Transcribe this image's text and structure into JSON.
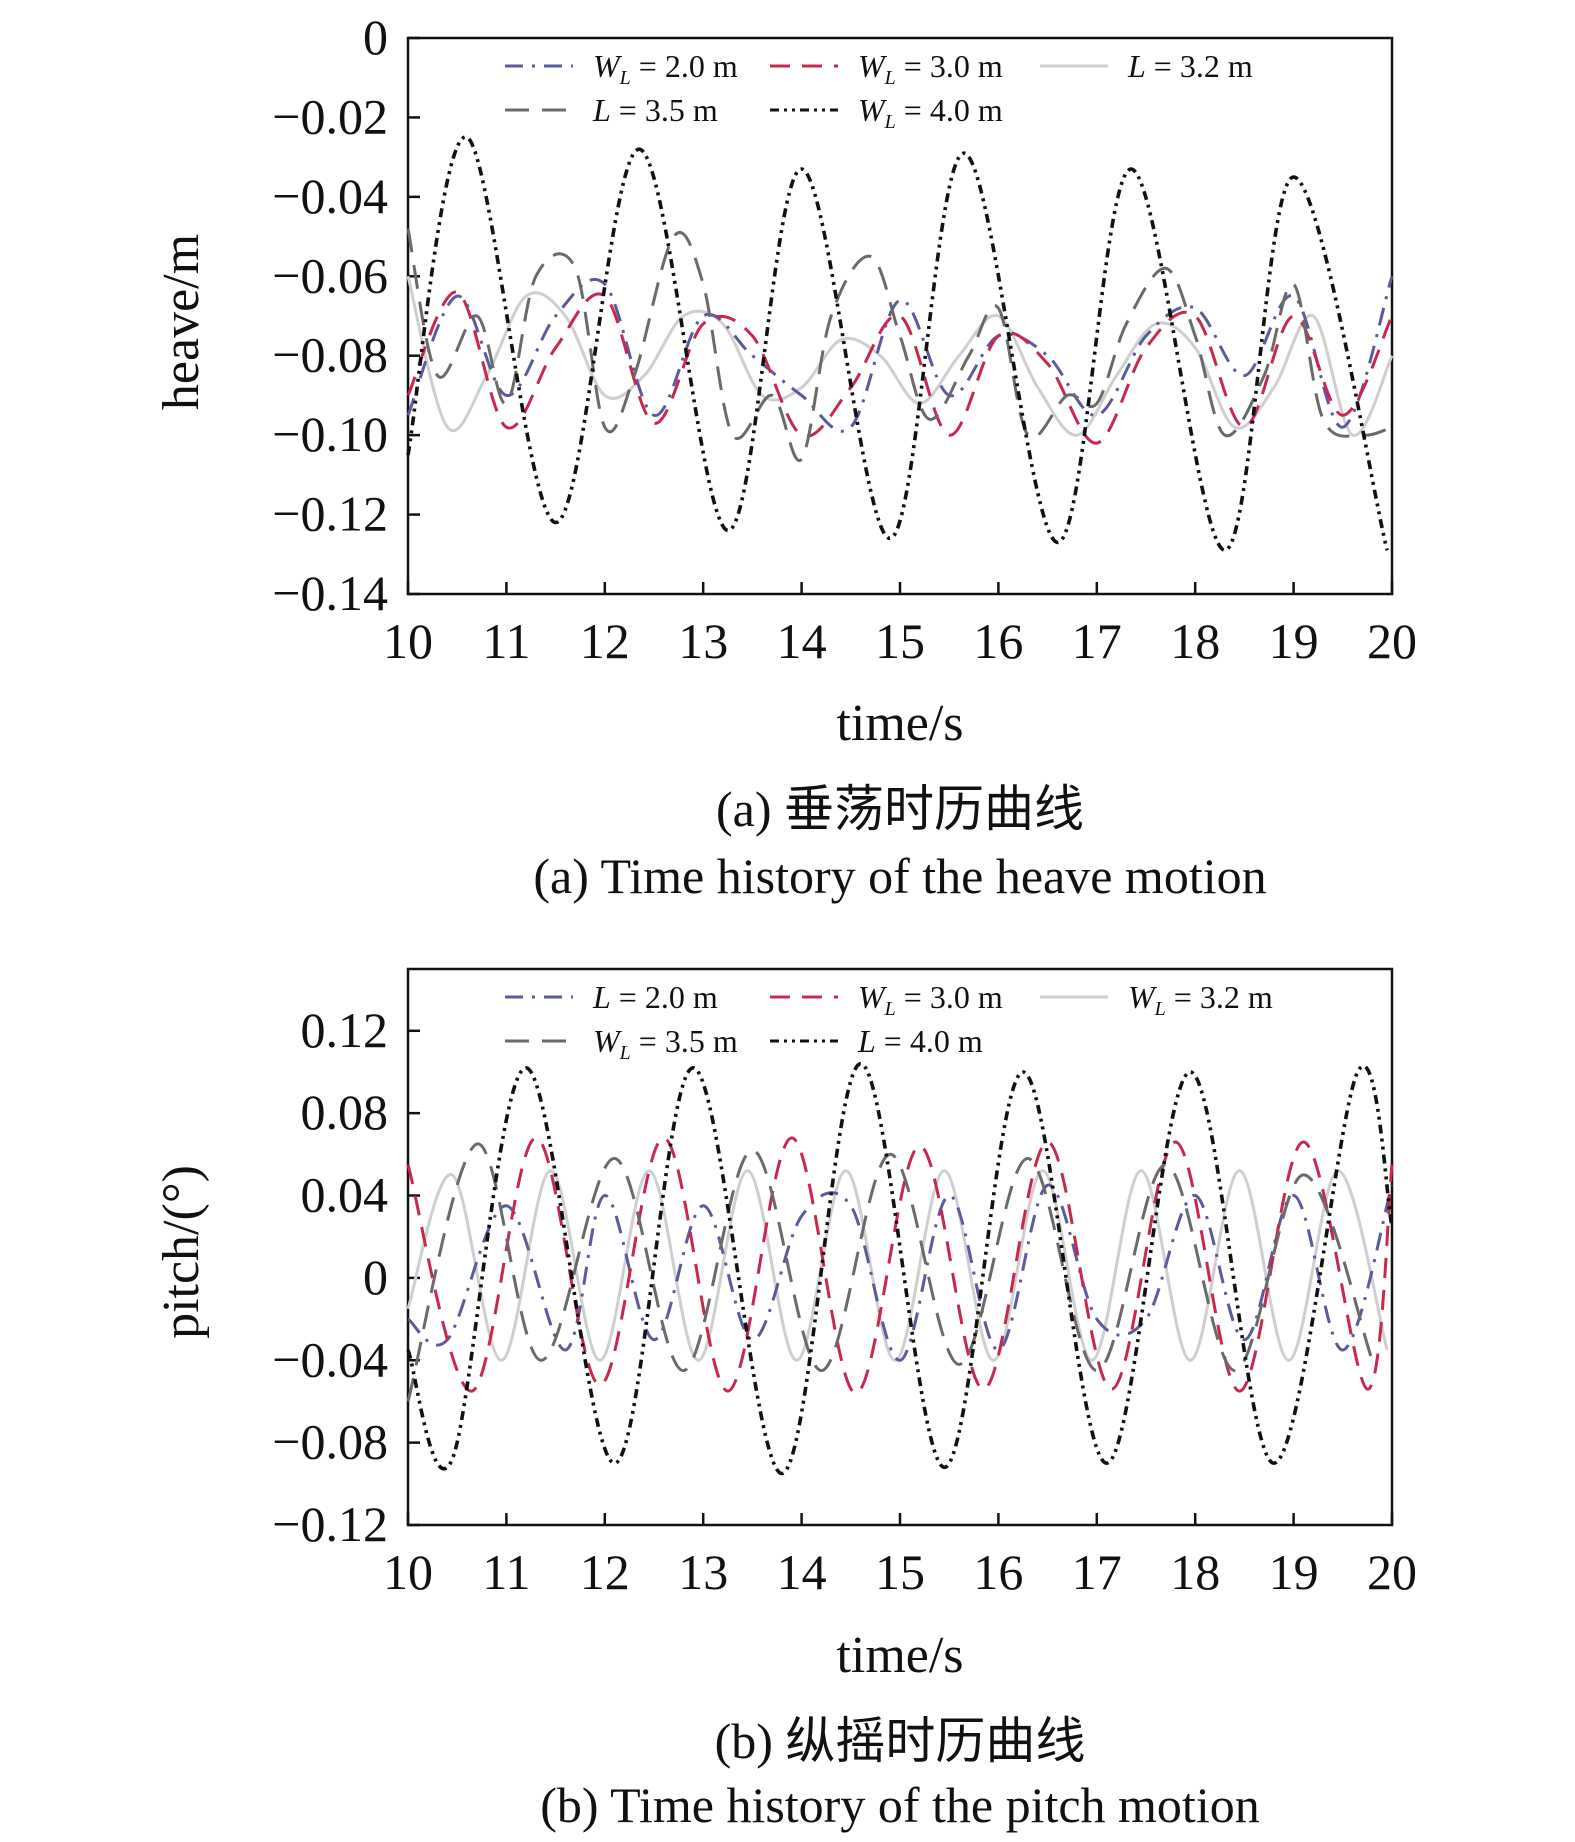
{
  "chart_data": [
    {
      "type": "line",
      "panel": "a",
      "caption_cn": "(a) 垂荡时历曲线",
      "caption_en": "(a) Time history of the heave motion",
      "xlabel": "time/s",
      "ylabel": "heave/m",
      "xlim": [
        10,
        20
      ],
      "ylim": [
        -0.14,
        0
      ],
      "xticks": [
        "10",
        "11",
        "12",
        "13",
        "14",
        "15",
        "16",
        "17",
        "18",
        "19",
        "20"
      ],
      "yticks": [
        "0",
        "−0.02",
        "−0.04",
        "−0.06",
        "−0.08",
        "−0.10",
        "−0.12",
        "−0.14"
      ],
      "grid": false,
      "legend_position": "top",
      "series": [
        {
          "name": "W_L = 2.0 m",
          "label_main": "W",
          "label_sub": "L",
          "label_rest": " = 2.0 m",
          "color": "#5a5a9e",
          "dash": "18 9 3 9",
          "x": [
            10.0,
            10.5,
            11.0,
            11.5,
            12.0,
            12.5,
            13.0,
            13.5,
            14.0,
            14.5,
            15.0,
            15.5,
            16.0,
            16.5,
            17.0,
            17.5,
            18.0,
            18.5,
            19.0,
            19.5,
            20.0
          ],
          "y": [
            -0.095,
            -0.065,
            -0.09,
            -0.07,
            -0.062,
            -0.095,
            -0.07,
            -0.08,
            -0.09,
            -0.098,
            -0.066,
            -0.09,
            -0.075,
            -0.08,
            -0.095,
            -0.075,
            -0.068,
            -0.085,
            -0.065,
            -0.098,
            -0.06
          ]
        },
        {
          "name": "W_L = 3.0 m",
          "label_main": "W",
          "label_sub": "L",
          "label_rest": " = 3.0 m",
          "color": "#c8284e",
          "dash": "20 12",
          "x": [
            10.0,
            10.5,
            11.0,
            11.5,
            12.0,
            12.5,
            13.0,
            13.5,
            14.0,
            14.5,
            15.0,
            15.5,
            16.0,
            16.5,
            17.0,
            17.5,
            18.0,
            18.5,
            19.0,
            19.5,
            20.0
          ],
          "y": [
            -0.09,
            -0.064,
            -0.098,
            -0.078,
            -0.065,
            -0.097,
            -0.072,
            -0.075,
            -0.1,
            -0.088,
            -0.07,
            -0.1,
            -0.075,
            -0.082,
            -0.102,
            -0.078,
            -0.07,
            -0.098,
            -0.07,
            -0.095,
            -0.07
          ]
        },
        {
          "name": "L = 3.2 m",
          "label_main": "L",
          "label_sub": "",
          "label_rest": " = 3.2 m",
          "color": "#cfcfcf",
          "dash": "",
          "x": [
            10.0,
            10.4,
            10.8,
            11.2,
            11.6,
            12.0,
            12.4,
            12.8,
            13.2,
            13.6,
            14.0,
            14.4,
            14.8,
            15.2,
            15.6,
            16.0,
            16.4,
            16.8,
            17.2,
            17.6,
            18.0,
            18.4,
            18.8,
            19.2,
            19.6,
            20.0
          ],
          "y": [
            -0.06,
            -0.098,
            -0.085,
            -0.065,
            -0.07,
            -0.09,
            -0.085,
            -0.07,
            -0.072,
            -0.09,
            -0.088,
            -0.076,
            -0.08,
            -0.092,
            -0.08,
            -0.07,
            -0.088,
            -0.1,
            -0.085,
            -0.072,
            -0.078,
            -0.098,
            -0.088,
            -0.07,
            -0.1,
            -0.08
          ]
        },
        {
          "name": "L = 3.5 m",
          "label_main": "L",
          "label_sub": "",
          "label_rest": " = 3.5 m",
          "color": "#6a6a6a",
          "dash": "24 13",
          "x": [
            10.0,
            10.3,
            10.7,
            11.0,
            11.3,
            11.7,
            12.0,
            12.3,
            12.7,
            13.0,
            13.3,
            13.7,
            14.0,
            14.3,
            14.7,
            15.0,
            15.3,
            15.7,
            16.0,
            16.3,
            16.7,
            17.0,
            17.3,
            17.7,
            18.0,
            18.3,
            18.7,
            19.0,
            19.3,
            19.7,
            20.0
          ],
          "y": [
            -0.048,
            -0.085,
            -0.07,
            -0.092,
            -0.06,
            -0.058,
            -0.098,
            -0.085,
            -0.05,
            -0.062,
            -0.1,
            -0.09,
            -0.106,
            -0.07,
            -0.055,
            -0.075,
            -0.096,
            -0.08,
            -0.068,
            -0.1,
            -0.09,
            -0.092,
            -0.072,
            -0.058,
            -0.075,
            -0.1,
            -0.085,
            -0.062,
            -0.096,
            -0.1,
            -0.098
          ]
        },
        {
          "name": "W_L = 4.0 m",
          "label_main": "W",
          "label_sub": "L",
          "label_rest": " = 4.0 m",
          "color": "#111111",
          "dash": "9 5 3 5 3 5",
          "x": [
            10.0,
            10.6,
            11.5,
            12.35,
            13.25,
            14.0,
            14.9,
            15.65,
            16.6,
            17.35,
            18.3,
            19.0,
            19.95
          ],
          "y": [
            -0.105,
            -0.025,
            -0.122,
            -0.028,
            -0.124,
            -0.033,
            -0.126,
            -0.029,
            -0.127,
            -0.033,
            -0.129,
            -0.035,
            -0.129
          ]
        }
      ]
    },
    {
      "type": "line",
      "panel": "b",
      "caption_cn": "(b) 纵摇时历曲线",
      "caption_en": "(b) Time history of the pitch motion",
      "xlabel": "time/s",
      "ylabel": "pitch/(°)",
      "xlim": [
        10,
        20
      ],
      "ylim": [
        -0.12,
        0.15
      ],
      "xticks": [
        "10",
        "11",
        "12",
        "13",
        "14",
        "15",
        "16",
        "17",
        "18",
        "19",
        "20"
      ],
      "yticks": [
        "0.12",
        "0.08",
        "0.04",
        "0",
        "−0.04",
        "−0.08",
        "−0.12"
      ],
      "ytick_values": [
        0.12,
        0.08,
        0.04,
        0,
        -0.04,
        -0.08,
        -0.12
      ],
      "grid": false,
      "legend_position": "top",
      "series": [
        {
          "name": "L = 2.0 m",
          "label_main": "L",
          "label_sub": "",
          "label_rest": " = 2.0 m",
          "color": "#5a5a9e",
          "dash": "18 9 3 9",
          "x": [
            10.0,
            10.4,
            11.0,
            11.6,
            12.0,
            12.5,
            13.0,
            13.5,
            14.0,
            14.5,
            15.0,
            15.5,
            16.0,
            16.5,
            17.0,
            17.5,
            18.0,
            18.5,
            19.0,
            19.5,
            20.0
          ],
          "y": [
            -0.02,
            -0.03,
            0.035,
            -0.035,
            0.04,
            -0.03,
            0.035,
            -0.03,
            0.03,
            0.035,
            -0.04,
            0.04,
            -0.035,
            0.045,
            -0.02,
            -0.02,
            0.04,
            -0.03,
            0.04,
            -0.035,
            0.045
          ]
        },
        {
          "name": "W_L = 3.0 m",
          "label_main": "W",
          "label_sub": "L",
          "label_rest": " = 3.0 m",
          "color": "#c8284e",
          "dash": "20 12",
          "x": [
            10.0,
            10.65,
            11.3,
            11.95,
            12.6,
            13.25,
            13.9,
            14.55,
            15.2,
            15.85,
            16.5,
            17.15,
            17.8,
            18.45,
            19.1,
            19.75,
            20.0
          ],
          "y": [
            0.055,
            -0.055,
            0.068,
            -0.052,
            0.068,
            -0.055,
            0.068,
            -0.056,
            0.064,
            -0.054,
            0.066,
            -0.054,
            0.066,
            -0.055,
            0.066,
            -0.054,
            0.055
          ]
        },
        {
          "name": "W_L = 3.2 m",
          "label_main": "W",
          "label_sub": "L",
          "label_rest": " = 3.2 m",
          "color": "#cfcfcf",
          "dash": "",
          "x": [
            10.0,
            10.45,
            10.95,
            11.45,
            11.95,
            12.45,
            12.95,
            13.45,
            13.95,
            14.45,
            14.95,
            15.45,
            15.95,
            16.45,
            16.95,
            17.45,
            17.95,
            18.45,
            18.95,
            19.45,
            19.95
          ],
          "y": [
            -0.015,
            0.05,
            -0.04,
            0.052,
            -0.04,
            0.052,
            -0.04,
            0.052,
            -0.04,
            0.052,
            -0.04,
            0.052,
            -0.04,
            0.052,
            -0.04,
            0.052,
            -0.04,
            0.052,
            -0.04,
            0.052,
            -0.035
          ]
        },
        {
          "name": "W_L = 3.5 m",
          "label_main": "W",
          "label_sub": "L",
          "label_rest": " = 3.5 m",
          "color": "#6a6a6a",
          "dash": "24 13",
          "x": [
            10.0,
            10.7,
            11.35,
            12.1,
            12.8,
            13.5,
            14.2,
            14.9,
            15.6,
            16.3,
            17.0,
            17.7,
            18.4,
            19.1,
            19.8
          ],
          "y": [
            -0.06,
            0.065,
            -0.04,
            0.058,
            -0.045,
            0.062,
            -0.045,
            0.06,
            -0.042,
            0.058,
            -0.045,
            0.055,
            -0.045,
            0.05,
            -0.04
          ]
        },
        {
          "name": "L = 4.0 m",
          "label_main": "L",
          "label_sub": "",
          "label_rest": " = 4.0 m",
          "color": "#111111",
          "dash": "9 5 3 5 3 5",
          "x": [
            10.0,
            10.45,
            11.2,
            12.1,
            12.9,
            13.8,
            14.6,
            15.45,
            16.25,
            17.1,
            17.95,
            18.8,
            19.65,
            20.0
          ],
          "y": [
            -0.035,
            -0.088,
            0.102,
            -0.09,
            0.102,
            -0.095,
            0.104,
            -0.092,
            0.1,
            -0.09,
            0.1,
            -0.09,
            0.1,
            0.025
          ]
        }
      ]
    }
  ]
}
